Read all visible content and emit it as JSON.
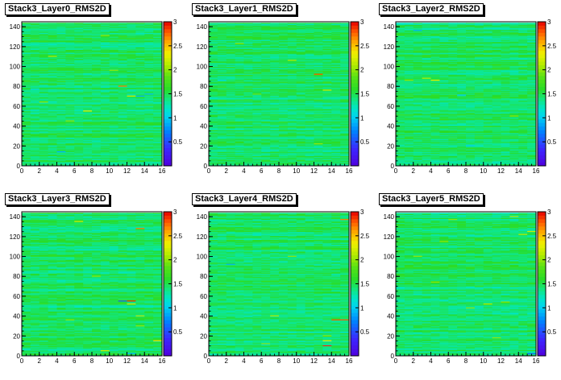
{
  "chart_data": [
    {
      "type": "heatmap",
      "title": "Stack3_Layer0_RMS2D",
      "xlim": [
        0,
        16
      ],
      "ylim": [
        0,
        145
      ],
      "zlim": [
        0,
        3
      ],
      "xticks": [
        "0",
        "2",
        "4",
        "6",
        "8",
        "10",
        "12",
        "14",
        "16"
      ],
      "yticks": [
        "0",
        "20",
        "40",
        "60",
        "80",
        "100",
        "120",
        "140"
      ],
      "zticks": [
        "0.5",
        "1",
        "1.5",
        "2",
        "2.5",
        "3"
      ],
      "nx": 16,
      "ny": 144,
      "baseline": 1.45,
      "seed": 11,
      "hotspots": [
        [
          3,
          110,
          2.1
        ],
        [
          11,
          80,
          2.7
        ],
        [
          7,
          55,
          2.3
        ],
        [
          12,
          70,
          2.2
        ],
        [
          4,
          14,
          0.9
        ],
        [
          13,
          70,
          0.9
        ],
        [
          5,
          45,
          2.0
        ],
        [
          9,
          131,
          2.0
        ],
        [
          2,
          64,
          2.0
        ],
        [
          1,
          77,
          1.1
        ],
        [
          14,
          72,
          0.95
        ],
        [
          10,
          96,
          2.0
        ]
      ]
    },
    {
      "type": "heatmap",
      "title": "Stack3_Layer1_RMS2D",
      "xlim": [
        0,
        16
      ],
      "ylim": [
        0,
        145
      ],
      "zlim": [
        0,
        3
      ],
      "xticks": [
        "0",
        "2",
        "4",
        "6",
        "8",
        "10",
        "12",
        "14",
        "16"
      ],
      "yticks": [
        "0",
        "20",
        "40",
        "60",
        "80",
        "100",
        "120",
        "140"
      ],
      "zticks": [
        "0.5",
        "1",
        "1.5",
        "2",
        "2.5",
        "3"
      ],
      "nx": 16,
      "ny": 144,
      "baseline": 1.45,
      "seed": 23,
      "hotspots": [
        [
          12,
          92,
          2.8
        ],
        [
          13,
          76,
          2.2
        ],
        [
          5,
          72,
          1.9
        ],
        [
          12,
          22,
          2.0
        ],
        [
          9,
          106,
          2.1
        ],
        [
          3,
          123,
          2.0
        ],
        [
          1,
          86,
          1.1
        ]
      ]
    },
    {
      "type": "heatmap",
      "title": "Stack3_Layer2_RMS2D",
      "xlim": [
        0,
        16
      ],
      "ylim": [
        0,
        145
      ],
      "zlim": [
        0,
        3
      ],
      "xticks": [
        "0",
        "2",
        "4",
        "6",
        "8",
        "10",
        "12",
        "14",
        "16"
      ],
      "yticks": [
        "0",
        "20",
        "40",
        "60",
        "80",
        "100",
        "120",
        "140"
      ],
      "zticks": [
        "0.5",
        "1",
        "1.5",
        "2",
        "2.5",
        "3"
      ],
      "nx": 16,
      "ny": 144,
      "baseline": 1.45,
      "seed": 37,
      "hotspots": [
        [
          2,
          136,
          0.9
        ],
        [
          3,
          88,
          2.1
        ],
        [
          4,
          86,
          2.3
        ],
        [
          7,
          71,
          1.0
        ],
        [
          8,
          20,
          1.0
        ],
        [
          5,
          0,
          0.5
        ],
        [
          1,
          86,
          2.0
        ],
        [
          13,
          50,
          2.0
        ]
      ]
    },
    {
      "type": "heatmap",
      "title": "Stack3_Layer3_RMS2D",
      "xlim": [
        0,
        16
      ],
      "ylim": [
        0,
        145
      ],
      "zlim": [
        0,
        3
      ],
      "xticks": [
        "0",
        "2",
        "4",
        "6",
        "8",
        "10",
        "12",
        "14",
        "16"
      ],
      "yticks": [
        "0",
        "20",
        "40",
        "60",
        "80",
        "100",
        "120",
        "140"
      ],
      "zticks": [
        "0.5",
        "1",
        "1.5",
        "2",
        "2.5",
        "3"
      ],
      "nx": 16,
      "ny": 144,
      "baseline": 1.45,
      "seed": 41,
      "hotspots": [
        [
          11,
          55,
          0.6
        ],
        [
          12,
          55,
          2.9
        ],
        [
          12,
          52,
          2.2
        ],
        [
          13,
          128,
          2.7
        ],
        [
          6,
          135,
          2.2
        ],
        [
          8,
          80,
          2.0
        ],
        [
          9,
          5,
          2.2
        ],
        [
          15,
          15,
          2.4
        ],
        [
          13,
          30,
          2.0
        ],
        [
          12,
          2,
          0.9
        ],
        [
          5,
          36,
          2.0
        ],
        [
          13,
          40,
          2.1
        ]
      ]
    },
    {
      "type": "heatmap",
      "title": "Stack3_Layer4_RMS2D",
      "xlim": [
        0,
        16
      ],
      "ylim": [
        0,
        145
      ],
      "zlim": [
        0,
        3
      ],
      "xticks": [
        "0",
        "2",
        "4",
        "6",
        "8",
        "10",
        "12",
        "14",
        "16"
      ],
      "yticks": [
        "0",
        "20",
        "40",
        "60",
        "80",
        "100",
        "120",
        "140"
      ],
      "zticks": [
        "0.5",
        "1",
        "1.5",
        "2",
        "2.5",
        "3"
      ],
      "nx": 16,
      "ny": 144,
      "baseline": 1.45,
      "seed": 53,
      "hotspots": [
        [
          2,
          92,
          0.9
        ],
        [
          15,
          137,
          2.7
        ],
        [
          14,
          36,
          2.8
        ],
        [
          15,
          36,
          2.8
        ],
        [
          13,
          10,
          2.9
        ],
        [
          13,
          15,
          2.3
        ],
        [
          13,
          20,
          2.0
        ],
        [
          9,
          100,
          2.0
        ],
        [
          6,
          12,
          2.0
        ],
        [
          7,
          40,
          2.1
        ]
      ]
    },
    {
      "type": "heatmap",
      "title": "Stack3_Layer5_RMS2D",
      "xlim": [
        0,
        16
      ],
      "ylim": [
        0,
        145
      ],
      "zlim": [
        0,
        3
      ],
      "xticks": [
        "0",
        "2",
        "4",
        "6",
        "8",
        "10",
        "12",
        "14",
        "16"
      ],
      "yticks": [
        "0",
        "20",
        "40",
        "60",
        "80",
        "100",
        "120",
        "140"
      ],
      "zticks": [
        "0.5",
        "1",
        "1.5",
        "2",
        "2.5",
        "3"
      ],
      "nx": 16,
      "ny": 144,
      "baseline": 1.45,
      "seed": 67,
      "hotspots": [
        [
          13,
          140,
          2.1
        ],
        [
          15,
          2,
          0.6
        ],
        [
          15,
          125,
          2.2
        ],
        [
          14,
          122,
          2.1
        ],
        [
          10,
          52,
          2.1
        ],
        [
          12,
          54,
          2.0
        ],
        [
          8,
          48,
          2.0
        ],
        [
          6,
          137,
          2.0
        ],
        [
          5,
          115,
          2.0
        ],
        [
          4,
          74,
          2.0
        ],
        [
          2,
          100,
          2.0
        ],
        [
          11,
          18,
          2.0
        ]
      ]
    }
  ]
}
